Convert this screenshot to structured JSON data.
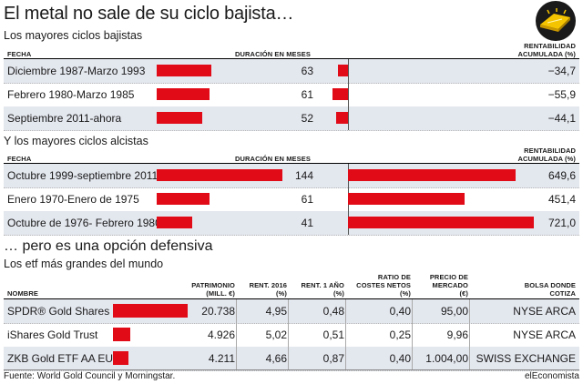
{
  "title": "El metal no sale de su ciclo bajista…",
  "icon": "gold-bar-icon",
  "colors": {
    "bar": "#e10a17",
    "row_alt": "#e3e7ee",
    "icon": "#f5c400"
  },
  "bearish": {
    "subtitle": "Los mayores ciclos bajistas",
    "col_fecha": "FECHA",
    "col_duracion": "DURACIÓN EN MESES",
    "col_rent_1": "RENTABILIDAD",
    "col_rent_2": "ACUMULADA (%)",
    "rows": [
      {
        "fecha": "Diciembre 1987-Marzo 1993",
        "duracion": "63",
        "rent": "−34,7"
      },
      {
        "fecha": "Febrero 1980-Marzo 1985",
        "duracion": "61",
        "rent": "−55,9"
      },
      {
        "fecha": "Septiembre 2011-ahora",
        "duracion": "52",
        "rent": "−44,1"
      }
    ]
  },
  "bullish": {
    "subtitle": "Y los mayores ciclos alcistas",
    "col_fecha": "FECHA",
    "col_duracion": "DURACIÓN EN MESES",
    "col_rent_1": "RENTABILIDAD",
    "col_rent_2": "ACUMULADA (%)",
    "rows": [
      {
        "fecha": "Octubre 1999-septiembre 2011",
        "duracion": "144",
        "rent": "649,6"
      },
      {
        "fecha": "Enero 1970-Enero de 1975",
        "duracion": "61",
        "rent": "451,4"
      },
      {
        "fecha": "Octubre de 1976- Febrero 1980",
        "duracion": "41",
        "rent": "721,0"
      }
    ]
  },
  "etf": {
    "heading": "… pero es una opción defensiva",
    "subtitle": "Los etf más grandes del mundo",
    "headers": {
      "nombre": "NOMBRE",
      "patrimonio_1": "PATRIMONIO",
      "patrimonio_2": "(MILL. €)",
      "rent2016_1": "RENT. 2016",
      "rent2016_2": "(%)",
      "rent1y_1": "RENT. 1 AÑO",
      "rent1y_2": "(%)",
      "ratio_1": "RATIO DE",
      "ratio_2": "COSTES NETOS",
      "ratio_3": "(%)",
      "precio_1": "PRECIO DE",
      "precio_2": "MERCADO",
      "precio_3": "(€)",
      "bolsa_1": "BOLSA DONDE",
      "bolsa_2": "COTIZA"
    },
    "rows": [
      {
        "nombre": "SPDR® Gold Shares",
        "patrimonio": "20.738",
        "rent2016": "4,95",
        "rent1y": "0,48",
        "ratio": "0,40",
        "precio": "95,00",
        "bolsa": "NYSE ARCA"
      },
      {
        "nombre": "iShares Gold Trust",
        "patrimonio": "4.926",
        "rent2016": "5,02",
        "rent1y": "0,51",
        "ratio": "0,25",
        "precio": "9,96",
        "bolsa": "NYSE ARCA"
      },
      {
        "nombre": "ZKB Gold ETF AA EUR",
        "patrimonio": "4.211",
        "rent2016": "4,66",
        "rent1y": "0,87",
        "ratio": "0,40",
        "precio": "1.004,00",
        "bolsa": "SWISS EXCHANGE"
      }
    ]
  },
  "footer": {
    "source": "Fuente: World Gold Council y Morningstar.",
    "brand": "elEconomista"
  },
  "chart_data": [
    {
      "type": "bar",
      "title": "Los mayores ciclos bajistas",
      "categories": [
        "Diciembre 1987-Marzo 1993",
        "Febrero 1980-Marzo 1985",
        "Septiembre 2011-ahora"
      ],
      "series": [
        {
          "name": "DURACIÓN EN MESES",
          "values": [
            63,
            61,
            52
          ]
        },
        {
          "name": "RENTABILIDAD ACUMULADA (%)",
          "values": [
            -34.7,
            -55.9,
            -44.1
          ]
        }
      ]
    },
    {
      "type": "bar",
      "title": "Y los mayores ciclos alcistas",
      "categories": [
        "Octubre 1999-septiembre 2011",
        "Enero 1970-Enero de 1975",
        "Octubre de 1976- Febrero 1980"
      ],
      "series": [
        {
          "name": "DURACIÓN EN MESES",
          "values": [
            144,
            61,
            41
          ]
        },
        {
          "name": "RENTABILIDAD ACUMULADA (%)",
          "values": [
            649.6,
            451.4,
            721.0
          ]
        }
      ]
    },
    {
      "type": "bar",
      "title": "Los etf más grandes del mundo",
      "categories": [
        "SPDR® Gold Shares",
        "iShares Gold Trust",
        "ZKB Gold ETF AA EUR"
      ],
      "series": [
        {
          "name": "PATRIMONIO (MILL. €)",
          "values": [
            20738,
            4926,
            4211
          ]
        }
      ]
    }
  ]
}
